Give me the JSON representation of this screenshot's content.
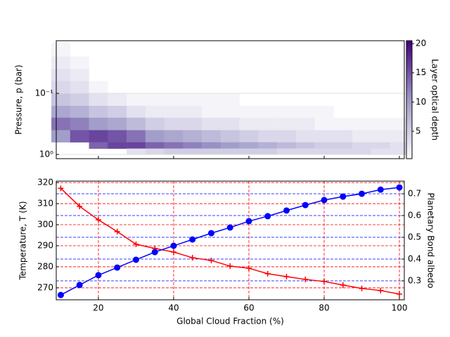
{
  "chart_data": [
    {
      "type": "heatmap",
      "ylabel": "Pressure, p (bar)",
      "colorbar_label": "Layer optical depth",
      "x": [
        10,
        15,
        20,
        25,
        30,
        35,
        40,
        45,
        50,
        55,
        60,
        65,
        70,
        75,
        80,
        85,
        90,
        95,
        100
      ],
      "y_edges": [
        0.015,
        0.025,
        0.04,
        0.063,
        0.1,
        0.16,
        0.25,
        0.4,
        0.63,
        0.8,
        1.0
      ],
      "z": [
        [
          1,
          2,
          3,
          4,
          6,
          9,
          13,
          10,
          null,
          null
        ],
        [
          null,
          1,
          2,
          3,
          5,
          8,
          12,
          15,
          null,
          null
        ],
        [
          null,
          null,
          null,
          1,
          3,
          6,
          10,
          16,
          14,
          null
        ],
        [
          null,
          null,
          null,
          null,
          2,
          5,
          9,
          15,
          16,
          null
        ],
        [
          null,
          null,
          null,
          null,
          1,
          3,
          7,
          13,
          16,
          3
        ],
        [
          null,
          null,
          null,
          null,
          1,
          2,
          5,
          10,
          14,
          4
        ],
        [
          null,
          null,
          null,
          null,
          1,
          2,
          4,
          9,
          13,
          5
        ],
        [
          null,
          null,
          null,
          null,
          1,
          2,
          4,
          8,
          12,
          5
        ],
        [
          null,
          null,
          null,
          null,
          1,
          1,
          3,
          7,
          11,
          5
        ],
        [
          null,
          null,
          null,
          null,
          1,
          1,
          3,
          6,
          10,
          5
        ],
        [
          null,
          null,
          null,
          null,
          null,
          1,
          2,
          5,
          9,
          5
        ],
        [
          null,
          null,
          null,
          null,
          null,
          1,
          2,
          4,
          8,
          5
        ],
        [
          null,
          null,
          null,
          null,
          null,
          1,
          2,
          4,
          7,
          4
        ],
        [
          null,
          null,
          null,
          null,
          null,
          1,
          2,
          3,
          6,
          4
        ],
        [
          null,
          null,
          null,
          null,
          null,
          1,
          1,
          3,
          5,
          4
        ],
        [
          null,
          null,
          null,
          null,
          null,
          null,
          1,
          3,
          5,
          4
        ],
        [
          null,
          null,
          null,
          null,
          null,
          null,
          1,
          2,
          4,
          4
        ],
        [
          null,
          null,
          null,
          null,
          null,
          null,
          1,
          2,
          4,
          3
        ],
        [
          null,
          null,
          null,
          null,
          null,
          null,
          1,
          2,
          3,
          3
        ]
      ],
      "xlim": [
        8.8,
        101.3
      ],
      "xticks": [
        20,
        40,
        60,
        80,
        100
      ],
      "ylim": [
        1.17,
        0.0138
      ],
      "log_y": true,
      "yticks": [
        {
          "value": 0.1,
          "label": "10⁻¹"
        },
        {
          "value": 1,
          "label": "10⁰"
        }
      ],
      "clim": [
        0.3,
        20.5
      ],
      "cticks": [
        5,
        10,
        15,
        20
      ],
      "colormap": [
        "#fcfbfd",
        "#9e9ac8",
        "#3f007d"
      ]
    },
    {
      "type": "line",
      "xlabel": "Global Cloud Fraction (%)",
      "ylabel": "Temperature, T (K)",
      "y2label": "Planetary Bond albedo",
      "x": [
        10,
        15,
        20,
        25,
        30,
        35,
        40,
        45,
        50,
        55,
        60,
        65,
        70,
        75,
        80,
        85,
        90,
        95,
        100
      ],
      "series": [
        {
          "name": "Temperature",
          "color": "#ff0000",
          "marker": "plus",
          "values": [
            317.3,
            308.7,
            302.3,
            296.7,
            290.7,
            288.7,
            287,
            284.3,
            283,
            280.3,
            279.3,
            276.7,
            275.3,
            274,
            273,
            271.3,
            269.7,
            268.7,
            267
          ]
        },
        {
          "name": "Planetary Bond albedo",
          "color": "#0000ff",
          "marker": "circle",
          "axis": "y2",
          "values": [
            0.235,
            0.281,
            0.326,
            0.361,
            0.397,
            0.432,
            0.461,
            0.49,
            0.519,
            0.545,
            0.574,
            0.597,
            0.623,
            0.648,
            0.671,
            0.687,
            0.7,
            0.719,
            0.729
          ]
        }
      ],
      "xlim": [
        8.8,
        101.3
      ],
      "xticks": [
        20,
        40,
        60,
        80,
        100
      ],
      "ylim": [
        264.3,
        320.7
      ],
      "yticks": [
        270,
        280,
        290,
        300,
        310,
        320
      ],
      "y2lim": [
        0.213,
        0.758
      ],
      "y2ticks": [
        0.3,
        0.4,
        0.5,
        0.6,
        0.7
      ],
      "grid": true
    }
  ]
}
